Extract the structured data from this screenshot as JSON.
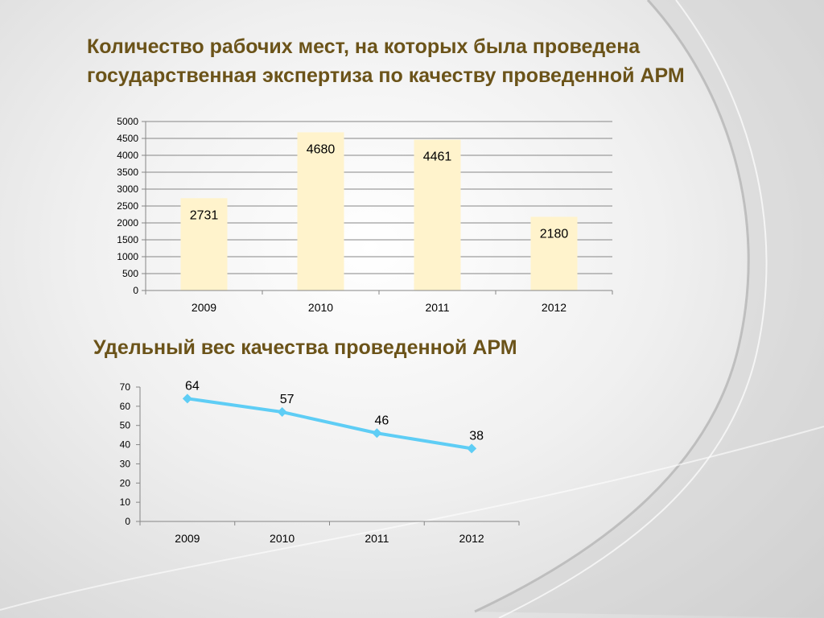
{
  "slide": {
    "title1": "Количество рабочих мест, на которых была проведена государственная экспертиза по качеству проведенной АРМ",
    "title2": "Удельный вес качества проведенной АРМ",
    "title_color": "#6b5319"
  },
  "chart_data": [
    {
      "type": "bar",
      "categories": [
        "2009",
        "2010",
        "2011",
        "2012"
      ],
      "values": [
        2731,
        4680,
        4461,
        2180
      ],
      "ylim": [
        0,
        5000
      ],
      "yticks": [
        0,
        500,
        1000,
        1500,
        2000,
        2500,
        3000,
        3500,
        4000,
        4500,
        5000
      ],
      "grid": true,
      "legend": "none",
      "bar_color": "#fff3cc",
      "data_labels": true
    },
    {
      "type": "line",
      "categories": [
        "2009",
        "2010",
        "2011",
        "2012"
      ],
      "values": [
        64,
        57,
        46,
        38
      ],
      "ylim": [
        0,
        70
      ],
      "yticks": [
        0,
        10,
        20,
        30,
        40,
        50,
        60,
        70
      ],
      "grid": false,
      "legend": "none",
      "line_color": "#5ecdf5",
      "marker": "diamond",
      "data_labels": true
    }
  ]
}
